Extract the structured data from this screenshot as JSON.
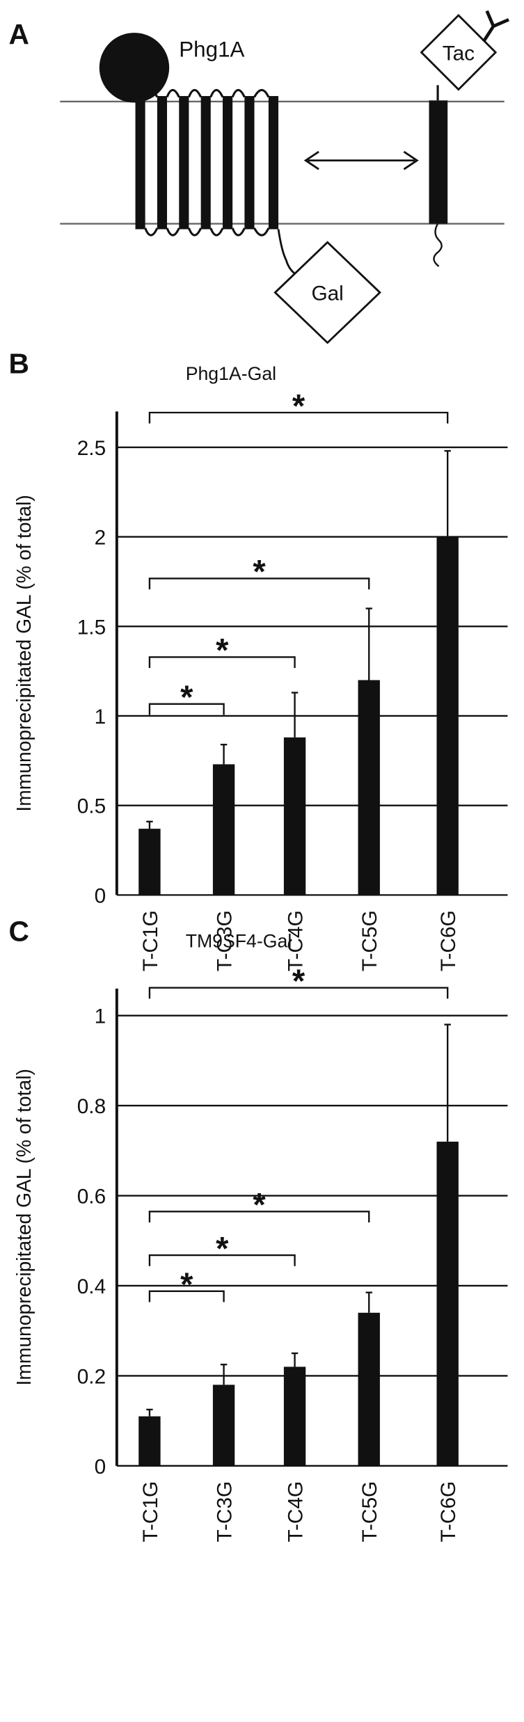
{
  "panel_a": {
    "panel_label": "A",
    "protein_label": "Phg1A",
    "tag_label": "Tac",
    "reporter_label": "Gal"
  },
  "chart_data": [
    {
      "type": "bar",
      "panel_label": "B",
      "title": "Phg1A-Gal",
      "ylabel": "Immunoprecipitated GAL (% of total)",
      "categories": [
        "T-C1G",
        "T-C3G",
        "T-C4G",
        "T-C5G",
        "T-C6G"
      ],
      "values": [
        0.37,
        0.73,
        0.88,
        1.2,
        2.0
      ],
      "errors": [
        0.04,
        0.11,
        0.25,
        0.4,
        0.48
      ],
      "color": "#111111",
      "ylim": [
        0,
        2.7
      ],
      "yticks": [
        0,
        0.5,
        1,
        1.5,
        2,
        2.5
      ],
      "grid": true,
      "annotations": [
        "*",
        "*",
        "*",
        "*"
      ]
    },
    {
      "type": "bar",
      "panel_label": "C",
      "title": "TM9SF4-Gal",
      "ylabel": "Immunoprecipitated GAL (% of total)",
      "categories": [
        "T-C1G",
        "T-C3G",
        "T-C4G",
        "T-C5G",
        "T-C6G"
      ],
      "values": [
        0.11,
        0.18,
        0.22,
        0.34,
        0.72
      ],
      "errors": [
        0.015,
        0.045,
        0.03,
        0.045,
        0.26
      ],
      "color": "#111111",
      "ylim": [
        0,
        1.06
      ],
      "yticks": [
        0,
        0.2,
        0.4,
        0.6,
        0.8,
        1
      ],
      "grid": true,
      "annotations": [
        "*",
        "*",
        "*",
        "*"
      ]
    }
  ]
}
